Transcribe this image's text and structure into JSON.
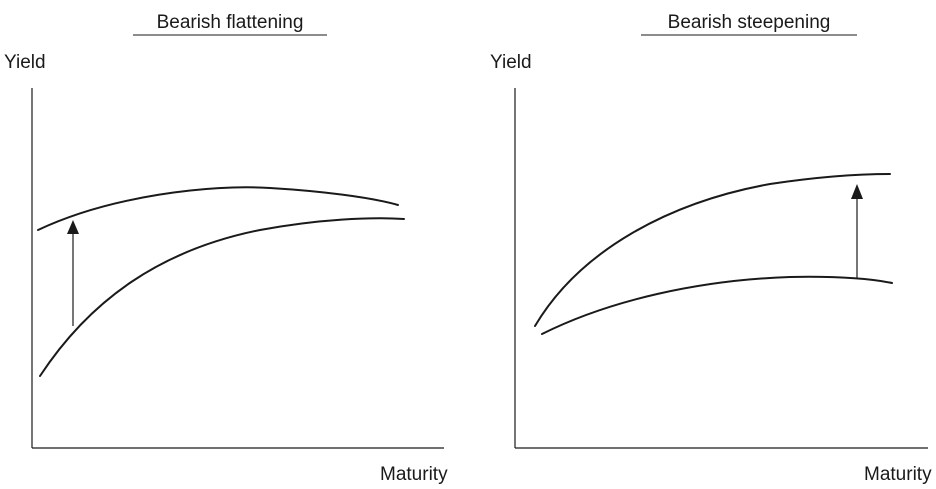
{
  "panels": [
    {
      "title": "Bearish flattening",
      "y_axis_label": "Yield",
      "x_axis_label": "Maturity",
      "curves": [
        "initial-yield-curve",
        "shifted-yield-curve"
      ],
      "shift": "up"
    },
    {
      "title": "Bearish steepening",
      "y_axis_label": "Yield",
      "x_axis_label": "Maturity",
      "curves": [
        "initial-yield-curve",
        "shifted-yield-curve"
      ],
      "shift": "up"
    }
  ],
  "colors": {
    "ink": "#1a1a1a",
    "background": "#ffffff"
  }
}
